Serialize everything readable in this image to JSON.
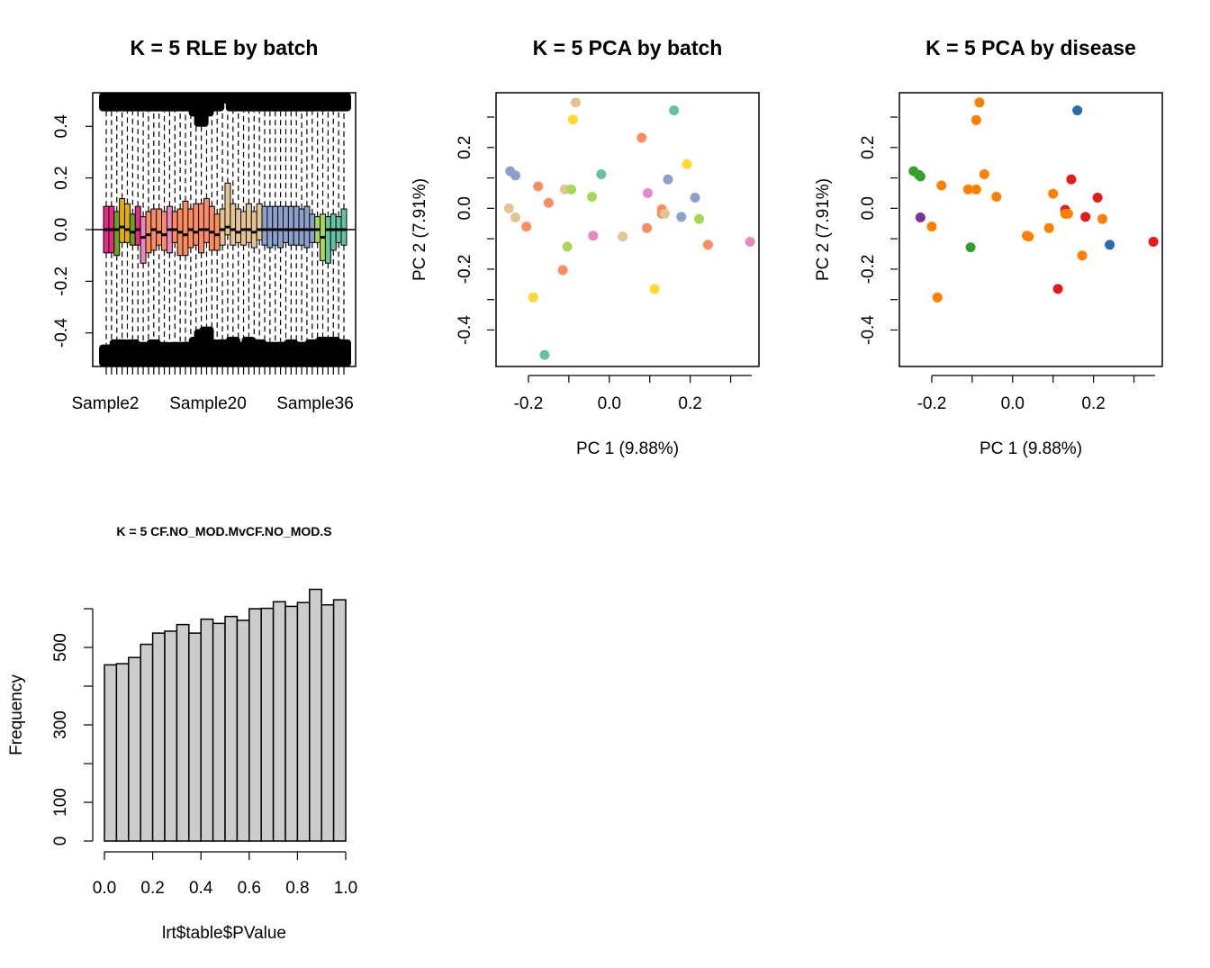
{
  "chart_data": [
    {
      "type": "box",
      "title": "K = 5 RLE by batch",
      "tick_labels": [
        "Sample2",
        "Sample20",
        "Sample36"
      ],
      "ylim": [
        -0.53,
        0.53
      ],
      "yticks": [
        -0.4,
        -0.2,
        0.0,
        0.2,
        0.4
      ],
      "ytick_labels": [
        "-0.4",
        "-0.2",
        "0.0",
        "0.2",
        "0.4"
      ],
      "n_samples": 46,
      "box_colors": [
        "#e7298a",
        "#e7298a",
        "#66a61e",
        "#e6ab02",
        "#e6ab02",
        "#66a61e",
        "#e7298a",
        "#e78ac3",
        "#fc8d62",
        "#fc8d62",
        "#fc8d62",
        "#fc8d62",
        "#e78ac3",
        "#fc8d62",
        "#fc8d62",
        "#fc8d62",
        "#fc8d62",
        "#fc8d62",
        "#fc8d62",
        "#fc8d62",
        "#fc8d62",
        "#fc8d62",
        "#e5c494",
        "#e5c494",
        "#e5c494",
        "#e5c494",
        "#e5c494",
        "#e5c494",
        "#e5c494",
        "#e5c494",
        "#8da0cb",
        "#8da0cb",
        "#8da0cb",
        "#8da0cb",
        "#8da0cb",
        "#8da0cb",
        "#8da0cb",
        "#8da0cb",
        "#8da0cb",
        "#8da0cb",
        "#a6d854",
        "#a6d854",
        "#66c2a5",
        "#66c2a5",
        "#66c2a5",
        "#66c2a5"
      ],
      "medians": [
        0.0,
        0.0,
        0.0,
        0.01,
        0.0,
        -0.01,
        0.0,
        -0.03,
        -0.02,
        0.0,
        -0.01,
        -0.02,
        0.0,
        0.0,
        -0.01,
        -0.02,
        0.0,
        -0.01,
        0.0,
        0.0,
        -0.01,
        -0.02,
        0.0,
        0.01,
        0.0,
        -0.01,
        0.0,
        0.0,
        -0.01,
        0.0,
        0.0,
        0.0,
        0.0,
        0.0,
        0.0,
        0.0,
        0.0,
        0.0,
        0.0,
        0.0,
        0.0,
        -0.03,
        0.0,
        0.0,
        0.0,
        0.0
      ],
      "q1": [
        -0.09,
        -0.09,
        -0.1,
        -0.05,
        -0.05,
        -0.06,
        -0.06,
        -0.13,
        -0.09,
        -0.08,
        -0.06,
        -0.08,
        -0.09,
        -0.05,
        -0.1,
        -0.1,
        -0.07,
        -0.06,
        -0.09,
        -0.05,
        -0.08,
        -0.08,
        -0.06,
        -0.02,
        -0.06,
        -0.05,
        -0.06,
        -0.05,
        -0.07,
        -0.04,
        -0.06,
        -0.07,
        -0.06,
        -0.07,
        -0.05,
        -0.06,
        -0.06,
        -0.06,
        -0.07,
        -0.05,
        -0.05,
        -0.12,
        -0.13,
        -0.08,
        -0.05,
        -0.06
      ],
      "q3": [
        0.09,
        0.09,
        0.07,
        0.12,
        0.1,
        0.06,
        0.09,
        0.05,
        0.07,
        0.08,
        0.08,
        0.07,
        0.09,
        0.07,
        0.08,
        0.11,
        0.08,
        0.1,
        0.1,
        0.12,
        0.09,
        0.06,
        0.08,
        0.18,
        0.1,
        0.08,
        0.07,
        0.1,
        0.07,
        0.1,
        0.09,
        0.09,
        0.09,
        0.09,
        0.09,
        0.09,
        0.09,
        0.08,
        0.09,
        0.06,
        0.05,
        0.06,
        0.05,
        0.06,
        0.05,
        0.08
      ],
      "whisker_low": [
        -0.48,
        -0.48,
        -0.46,
        -0.46,
        -0.47,
        -0.46,
        -0.49,
        -0.47,
        -0.48,
        -0.46,
        -0.48,
        -0.47,
        -0.49,
        -0.47,
        -0.48,
        -0.47,
        -0.47,
        -0.45,
        -0.42,
        -0.41,
        -0.46,
        -0.48,
        -0.46,
        -0.48,
        -0.45,
        -0.47,
        -0.47,
        -0.45,
        -0.46,
        -0.46,
        -0.47,
        -0.47,
        -0.47,
        -0.47,
        -0.47,
        -0.46,
        -0.47,
        -0.47,
        -0.47,
        -0.46,
        -0.46,
        -0.45,
        -0.47,
        -0.45,
        -0.46,
        -0.46
      ],
      "whisker_high": [
        0.5,
        0.5,
        0.5,
        0.5,
        0.5,
        0.5,
        0.5,
        0.5,
        0.5,
        0.5,
        0.5,
        0.5,
        0.5,
        0.5,
        0.5,
        0.5,
        0.5,
        0.48,
        0.44,
        0.48,
        0.5,
        0.5,
        0.53,
        0.53,
        0.5,
        0.5,
        0.5,
        0.5,
        0.5,
        0.5,
        0.5,
        0.5,
        0.5,
        0.5,
        0.5,
        0.5,
        0.5,
        0.5,
        0.5,
        0.5,
        0.5,
        0.5,
        0.5,
        0.5,
        0.5,
        0.5
      ],
      "reference_line_y": 0
    },
    {
      "type": "scatter",
      "title": "K = 5 PCA by batch",
      "xlabel": "PC 1 (9.88%)",
      "ylabel": "PC 2 (7.91%)",
      "xlim": [
        -0.28,
        0.37
      ],
      "ylim": [
        -0.52,
        0.38
      ],
      "xticks": [
        -0.2,
        0.0,
        0.2
      ],
      "xtick_labels": [
        "-0.2",
        "0.0",
        "0.2"
      ],
      "yticks": [
        -0.4,
        -0.2,
        0.0,
        0.2
      ],
      "ytick_labels": [
        "-0.4",
        "-0.2",
        "0.0",
        "0.2"
      ],
      "x": [
        -0.245,
        -0.232,
        -0.248,
        -0.232,
        -0.205,
        -0.176,
        -0.15,
        -0.188,
        -0.115,
        -0.11,
        -0.104,
        -0.094,
        -0.09,
        -0.083,
        -0.043,
        -0.04,
        -0.02,
        0.033,
        0.08,
        0.095,
        0.093,
        0.112,
        0.13,
        0.13,
        0.137,
        0.145,
        0.16,
        0.178,
        0.192,
        0.212,
        0.222,
        0.244,
        0.348,
        -0.16
      ],
      "y": [
        0.122,
        0.108,
        0.0,
        -0.03,
        -0.06,
        0.072,
        0.018,
        -0.293,
        -0.203,
        0.062,
        -0.126,
        0.062,
        0.292,
        0.348,
        0.038,
        -0.09,
        0.112,
        -0.093,
        0.232,
        0.05,
        -0.065,
        -0.265,
        -0.018,
        -0.003,
        -0.018,
        0.095,
        0.322,
        -0.028,
        0.145,
        0.035,
        -0.035,
        -0.12,
        -0.11,
        -0.482
      ],
      "colors": [
        "#8da0cb",
        "#8da0cb",
        "#e5c494",
        "#e5c494",
        "#fc8d62",
        "#fc8d62",
        "#fc8d62",
        "#ffd92f",
        "#fc8d62",
        "#e5c494",
        "#a6d854",
        "#a6d854",
        "#ffd92f",
        "#e5c494",
        "#a6d854",
        "#e78ac3",
        "#66c2a5",
        "#e5c494",
        "#fc8d62",
        "#e78ac3",
        "#fc8d62",
        "#ffd92f",
        "#fc8d62",
        "#fc8d62",
        "#e5c494",
        "#8da0cb",
        "#66c2a5",
        "#8da0cb",
        "#ffd92f",
        "#8da0cb",
        "#a6d854",
        "#fc8d62",
        "#e78ac3",
        "#66c2a5"
      ]
    },
    {
      "type": "scatter",
      "title": "K = 5 PCA by disease",
      "xlabel": "PC 1 (9.88%)",
      "ylabel": "PC 2 (7.91%)",
      "xlim": [
        -0.28,
        0.37
      ],
      "ylim": [
        -0.52,
        0.38
      ],
      "xticks": [
        -0.2,
        0.0,
        0.2
      ],
      "xtick_labels": [
        "-0.2",
        "0.0",
        "0.2"
      ],
      "yticks": [
        -0.4,
        -0.2,
        0.0,
        0.2
      ],
      "ytick_labels": [
        "-0.4",
        "-0.2",
        "0.0",
        "0.2"
      ],
      "x": [
        -0.245,
        -0.232,
        -0.228,
        -0.228,
        -0.2,
        -0.176,
        -0.186,
        -0.11,
        -0.09,
        -0.09,
        -0.082,
        -0.07,
        -0.104,
        -0.04,
        0.04,
        0.035,
        0.1,
        0.09,
        0.112,
        0.13,
        0.13,
        0.137,
        0.145,
        0.16,
        0.172,
        0.18,
        0.21,
        0.222,
        0.24,
        0.348
      ],
      "y": [
        0.122,
        0.11,
        0.105,
        -0.03,
        -0.06,
        0.075,
        -0.293,
        0.062,
        0.062,
        0.29,
        0.348,
        0.112,
        -0.128,
        0.038,
        -0.093,
        -0.09,
        0.048,
        -0.065,
        -0.265,
        -0.005,
        -0.018,
        -0.018,
        0.095,
        0.322,
        -0.155,
        -0.028,
        0.035,
        -0.035,
        -0.12,
        -0.11
      ],
      "colors": [
        "#33a02c",
        "#33a02c",
        "#33a02c",
        "#7b3294",
        "#ff7f00",
        "#ff7f00",
        "#ff7f00",
        "#ff7f00",
        "#ff7f00",
        "#ff7f00",
        "#ff7f00",
        "#ff7f00",
        "#33a02c",
        "#ff7f00",
        "#ff7f00",
        "#ff7f00",
        "#ff7f00",
        "#ff7f00",
        "#e41a1c",
        "#e41a1c",
        "#ff7f00",
        "#ff7f00",
        "#e41a1c",
        "#2b6cb0",
        "#ff7f00",
        "#e41a1c",
        "#e41a1c",
        "#ff7f00",
        "#2b6cb0",
        "#e41a1c"
      ]
    },
    {
      "type": "histogram",
      "title": "K = 5 CF.NO_MOD.MvCF.NO_MOD.S",
      "xlabel": "lrt$table$PValue",
      "ylabel": "Frequency",
      "xlim": [
        0,
        1
      ],
      "ylim": [
        0,
        660
      ],
      "xticks": [
        0.0,
        0.2,
        0.4,
        0.6,
        0.8,
        1.0
      ],
      "xtick_labels": [
        "0.0",
        "0.2",
        "0.4",
        "0.6",
        "0.8",
        "1.0"
      ],
      "yticks": [
        0,
        100,
        200,
        300,
        400,
        500,
        600
      ],
      "ytick_labels": [
        "0",
        "100",
        "",
        "300",
        "",
        "500",
        ""
      ],
      "bin_width": 0.05,
      "values": [
        455,
        458,
        474,
        508,
        537,
        542,
        559,
        537,
        573,
        562,
        580,
        570,
        600,
        601,
        618,
        606,
        616,
        650,
        610,
        623
      ],
      "bar_color": "#cccccc"
    }
  ]
}
